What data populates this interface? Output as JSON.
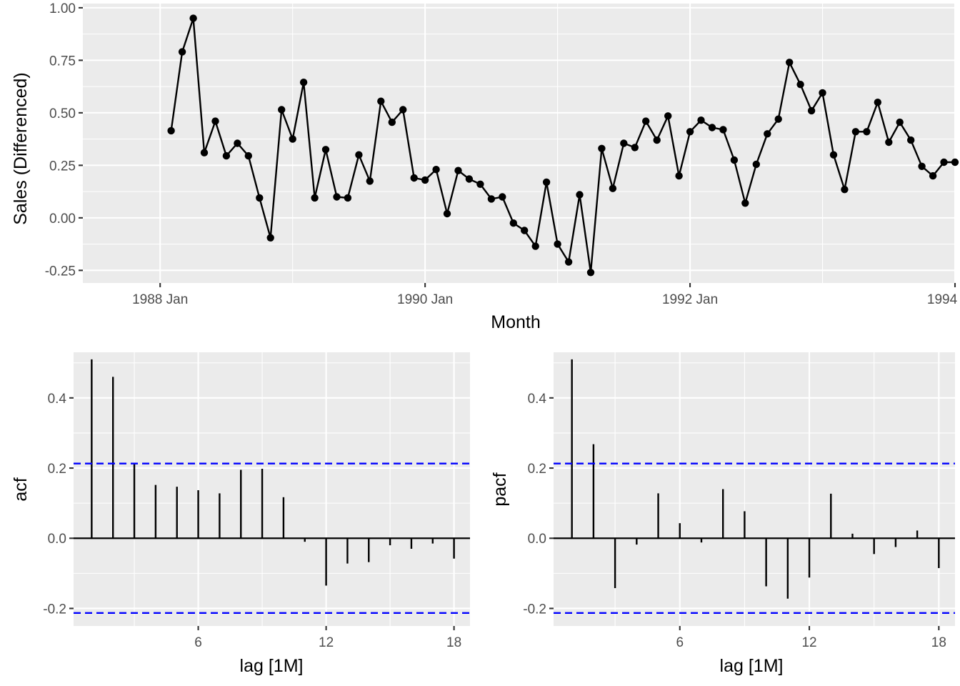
{
  "colors": {
    "panel": "#EBEBEB",
    "grid": "#FFFFFF",
    "series": "#000000",
    "bound": "#0000FF",
    "tick_text": "#4D4D4D"
  },
  "chart_data": [
    {
      "type": "line",
      "xlabel": "Month",
      "ylabel": "Sales (Differenced)",
      "x_unit": "month",
      "x_start": "1988 Feb",
      "x_end": "1993 Dec",
      "xlim": [
        "1987 Jun",
        "1994 Jan"
      ],
      "ylim": [
        -0.31,
        1.02
      ],
      "xticks": [
        "1988 Jan",
        "1990 Jan",
        "1992 Jan",
        "1994 Jan"
      ],
      "yticks": [
        "-0.25",
        "0.00",
        "0.25",
        "0.50",
        "0.75",
        "1.00"
      ],
      "grid": true,
      "markers": true,
      "values": [
        0.415,
        0.79,
        0.95,
        0.31,
        0.46,
        0.295,
        0.355,
        0.295,
        0.095,
        -0.095,
        0.515,
        0.375,
        0.645,
        0.095,
        0.325,
        0.1,
        0.095,
        0.3,
        0.175,
        0.555,
        0.455,
        0.515,
        0.19,
        0.18,
        0.23,
        0.02,
        0.225,
        0.185,
        0.16,
        0.09,
        0.1,
        -0.025,
        -0.06,
        -0.135,
        0.17,
        -0.125,
        -0.21,
        0.11,
        -0.26,
        0.33,
        0.14,
        0.355,
        0.335,
        0.46,
        0.37,
        0.485,
        0.2,
        0.41,
        0.465,
        0.43,
        0.42,
        0.275,
        0.07,
        0.255,
        0.4,
        0.47,
        0.74,
        0.635,
        0.51,
        0.595,
        0.3,
        0.135,
        0.41,
        0.41,
        0.55,
        0.36,
        0.455,
        0.37,
        0.245,
        0.2,
        0.265,
        0.265
      ]
    },
    {
      "type": "bar",
      "xlabel": "lag [1M]",
      "ylabel": "acf",
      "lags": [
        1,
        2,
        3,
        4,
        5,
        6,
        7,
        8,
        9,
        10,
        11,
        12,
        13,
        14,
        15,
        16,
        17,
        18
      ],
      "values": [
        0.51,
        0.46,
        0.215,
        0.152,
        0.147,
        0.137,
        0.128,
        0.195,
        0.198,
        0.117,
        -0.01,
        -0.135,
        -0.072,
        -0.068,
        -0.02,
        -0.03,
        -0.015,
        -0.058
      ],
      "bounds": [
        0.213,
        -0.213
      ],
      "xlim": [
        0.15,
        18.75
      ],
      "ylim": [
        -0.25,
        0.53
      ],
      "xticks": [
        "6",
        "12",
        "18"
      ],
      "yticks": [
        "-0.2",
        "0.0",
        "0.2",
        "0.4"
      ],
      "grid": true
    },
    {
      "type": "bar",
      "xlabel": "lag [1M]",
      "ylabel": "pacf",
      "lags": [
        1,
        2,
        3,
        4,
        5,
        6,
        7,
        8,
        9,
        10,
        11,
        12,
        13,
        14,
        15,
        16,
        17,
        18
      ],
      "values": [
        0.51,
        0.268,
        -0.142,
        -0.018,
        0.128,
        0.043,
        -0.012,
        0.14,
        0.077,
        -0.137,
        -0.172,
        -0.112,
        0.127,
        0.013,
        -0.045,
        -0.025,
        0.022,
        -0.085
      ],
      "bounds": [
        0.213,
        -0.213
      ],
      "xlim": [
        0.15,
        18.75
      ],
      "ylim": [
        -0.25,
        0.53
      ],
      "xticks": [
        "6",
        "12",
        "18"
      ],
      "yticks": [
        "-0.2",
        "0.0",
        "0.2",
        "0.4"
      ],
      "grid": true
    }
  ]
}
